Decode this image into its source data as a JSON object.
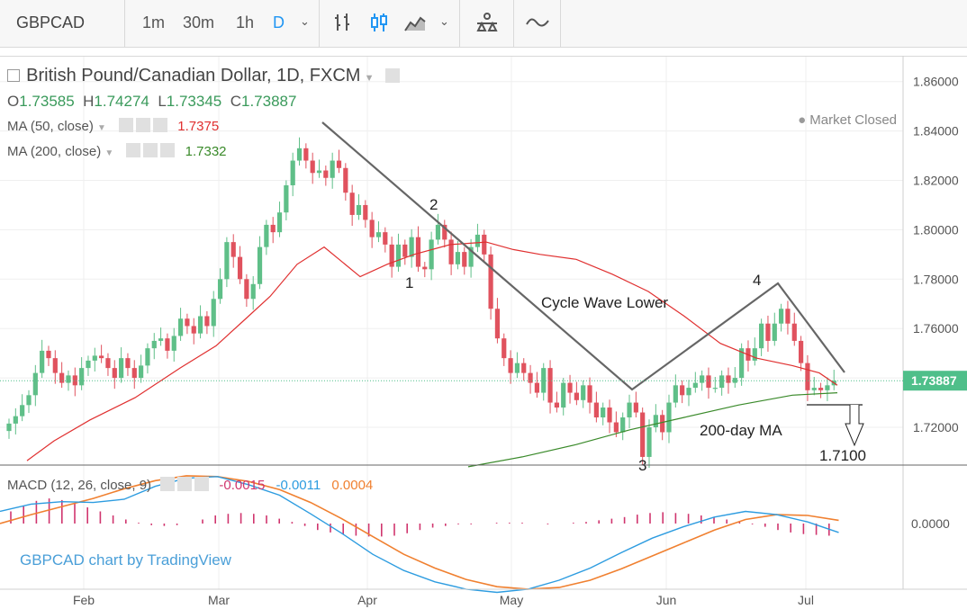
{
  "toolbar": {
    "symbol": "GBPCAD",
    "intervals": [
      "1m",
      "30m",
      "1h",
      "D"
    ],
    "active_interval": "D"
  },
  "legend": {
    "title": "British Pound/Canadian Dollar, 1D, FXCM",
    "market_status": "Market Closed",
    "ohlc": {
      "o_label": "O",
      "o": "1.73585",
      "h_label": "H",
      "h": "1.74274",
      "l_label": "L",
      "l": "1.73345",
      "c_label": "C",
      "c": "1.73887"
    },
    "ma50_label": "MA (50, close)",
    "ma50_value": "1.7375",
    "ma200_label": "MA (200, close)",
    "ma200_value": "1.7332",
    "macd_label": "MACD (12, 26, close, 9)",
    "macd_hist": "-0.0015",
    "macd_line": "-0.0011",
    "macd_signal": "0.0004",
    "watermark": "GBPCAD chart by TradingView"
  },
  "colors": {
    "up": "#5fbf88",
    "down": "#e0525e",
    "ma50": "#e03030",
    "ma200": "#3a8a2a",
    "macd": "#2d9ce0",
    "signal": "#f08030",
    "hist": "#d0356e",
    "price_tag": "#4fbf8a"
  },
  "chart_data": [
    {
      "type": "candlestick",
      "title": "British Pound/Canadian Dollar, 1D, FXCM",
      "x_tick_labels": [
        "Feb",
        "Mar",
        "Apr",
        "May",
        "Jun",
        "Jul"
      ],
      "y_tick_labels": [
        "1.72000",
        "1.74000",
        "1.76000",
        "1.78000",
        "1.80000",
        "1.82000",
        "1.84000",
        "1.86000"
      ],
      "ylim": [
        1.704,
        1.866
      ],
      "last_price_label": "1.73887",
      "closes": [
        1.7215,
        1.7245,
        1.729,
        1.733,
        1.742,
        1.751,
        1.748,
        1.742,
        1.738,
        1.741,
        1.737,
        1.744,
        1.747,
        1.749,
        1.748,
        1.744,
        1.74,
        1.748,
        1.744,
        1.74,
        1.745,
        1.752,
        1.755,
        1.756,
        1.751,
        1.757,
        1.764,
        1.761,
        1.758,
        1.765,
        1.761,
        1.772,
        1.78,
        1.795,
        1.789,
        1.78,
        1.772,
        1.778,
        1.793,
        1.802,
        1.799,
        1.807,
        1.818,
        1.828,
        1.833,
        1.828,
        1.823,
        1.824,
        1.821,
        1.828,
        1.825,
        1.815,
        1.806,
        1.81,
        1.804,
        1.797,
        1.799,
        1.794,
        1.785,
        1.794,
        1.789,
        1.797,
        1.785,
        1.784,
        1.796,
        1.802,
        1.796,
        1.786,
        1.791,
        1.785,
        1.793,
        1.798,
        1.79,
        1.768,
        1.756,
        1.748,
        1.742,
        1.746,
        1.742,
        1.738,
        1.734,
        1.744,
        1.73,
        1.728,
        1.738,
        1.734,
        1.731,
        1.737,
        1.73,
        1.724,
        1.728,
        1.722,
        1.718,
        1.724,
        1.73,
        1.726,
        1.708,
        1.72,
        1.725,
        1.718,
        1.73,
        1.737,
        1.733,
        1.736,
        1.738,
        1.741,
        1.736,
        1.736,
        1.741,
        1.738,
        1.74,
        1.752,
        1.747,
        1.752,
        1.762,
        1.755,
        1.762,
        1.768,
        1.762,
        1.755,
        1.746,
        1.735,
        1.736,
        1.735,
        1.737,
        1.7389
      ],
      "series": [
        {
          "name": "MA (50, close)",
          "points": [
            [
              30,
              1.7065
            ],
            [
              60,
              1.7145
            ],
            [
              100,
              1.723
            ],
            [
              150,
              1.732
            ],
            [
              200,
              1.744
            ],
            [
              240,
              1.753
            ],
            [
              270,
              1.763
            ],
            [
              300,
              1.773
            ],
            [
              330,
              1.786
            ],
            [
              360,
              1.793
            ],
            [
              400,
              1.781
            ],
            [
              430,
              1.786
            ],
            [
              460,
              1.79
            ],
            [
              500,
              1.794
            ],
            [
              540,
              1.795
            ],
            [
              570,
              1.792
            ],
            [
              600,
              1.79
            ],
            [
              640,
              1.788
            ],
            [
              680,
              1.782
            ],
            [
              720,
              1.775
            ],
            [
              760,
              1.765
            ],
            [
              800,
              1.754
            ],
            [
              840,
              1.748
            ],
            [
              880,
              1.745
            ],
            [
              910,
              1.742
            ],
            [
              930,
              1.737
            ]
          ]
        },
        {
          "name": "MA (200, close)",
          "points": [
            [
              520,
              1.704
            ],
            [
              580,
              1.708
            ],
            [
              640,
              1.713
            ],
            [
              700,
              1.719
            ],
            [
              760,
              1.724
            ],
            [
              820,
              1.729
            ],
            [
              880,
              1.733
            ],
            [
              930,
              1.734
            ]
          ]
        }
      ],
      "annotations": [
        {
          "text": "1",
          "x": 65,
          "y": 1.7825
        },
        {
          "text": "2",
          "x": 77,
          "y": 1.806
        },
        {
          "text": "3",
          "x": 104,
          "y": 1.705
        },
        {
          "text": "4",
          "x": 118,
          "y": 1.7815
        },
        {
          "text": "Cycle Wave Lower",
          "x": 87,
          "y": 1.7645
        },
        {
          "text": "200-day MA",
          "x": 112,
          "y": 1.7195
        },
        {
          "text": "1.7100",
          "x": 136,
          "y": 1.709
        }
      ]
    },
    {
      "type": "macd",
      "title": "MACD (12, 26, close, 9)",
      "y_tick_labels": [
        "0.0000"
      ],
      "histogram": [
        0.0015,
        0.0022,
        0.0028,
        0.0031,
        0.0029,
        0.0025,
        0.002,
        0.0015,
        0.001,
        0.0005,
        0.0001,
        -0.0002,
        -0.0003,
        -0.0002,
        0.0,
        0.0005,
        0.001,
        0.0012,
        0.0013,
        0.0012,
        0.001,
        0.0006,
        0.0002,
        -0.0003,
        -0.0008,
        -0.0011,
        -0.0013,
        -0.0015,
        -0.0016,
        -0.0016,
        -0.0015,
        -0.0012,
        -0.0008,
        -0.0005,
        -0.0003,
        -0.0001,
        -0.0001,
        0.0,
        0.0001,
        0.0001,
        0.0001,
        0.0,
        -0.0001,
        0.0,
        0.0001,
        0.0002,
        0.0004,
        0.0006,
        0.0008,
        0.0011,
        0.0013,
        0.0014,
        0.0013,
        0.0012,
        0.001,
        0.0008,
        0.0005,
        0.0002,
        -0.0001,
        -0.0004,
        -0.0008,
        -0.0011,
        -0.0013,
        -0.0014,
        -0.0015
      ],
      "macd_line": [
        0.0015,
        0.0024,
        0.0027,
        0.0026,
        0.003,
        0.0046,
        0.0056,
        0.0058,
        0.0048,
        0.0035,
        0.0012,
        -0.0012,
        -0.0038,
        -0.0058,
        -0.0072,
        -0.0081,
        -0.0085,
        -0.0081,
        -0.007,
        -0.0055,
        -0.0036,
        -0.0018,
        -0.0004,
        0.0008,
        0.0015,
        0.0011,
        0.0002,
        -0.0011
      ],
      "signal_line": [
        0.0,
        0.0011,
        0.0021,
        0.0031,
        0.0043,
        0.0053,
        0.0059,
        0.0058,
        0.0052,
        0.0042,
        0.0026,
        0.0006,
        -0.0016,
        -0.0038,
        -0.0055,
        -0.0069,
        -0.0078,
        -0.0081,
        -0.0079,
        -0.007,
        -0.0056,
        -0.004,
        -0.0024,
        -0.0008,
        0.0005,
        0.0011,
        0.001,
        0.0004
      ]
    }
  ]
}
